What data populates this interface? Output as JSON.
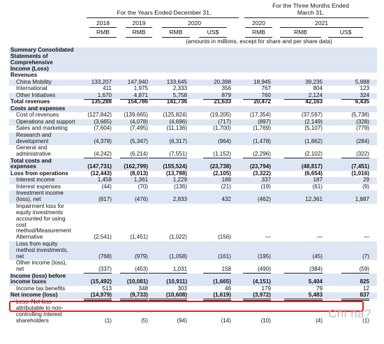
{
  "header": {
    "group_years": "For the Years Ended December 31,",
    "group_quarters_line1": "For the Three Months Ended",
    "group_quarters_line2": "March 31,",
    "years": [
      "2018",
      "2019",
      "2020",
      "2020",
      "2021"
    ],
    "currencies": [
      "RMB",
      "RMB",
      "RMB",
      "US$",
      "RMB",
      "RMB",
      "US$"
    ],
    "amounts_note": "(amounts in millions, except for share and per share data)"
  },
  "rows": [
    {
      "label": [
        "Summary Consolidated",
        "Statements of",
        "Comprehensive",
        "Income (Loss)"
      ],
      "bold": true,
      "values": null
    },
    {
      "label": [
        "Revenues"
      ],
      "bold": true,
      "values": null
    },
    {
      "label": [
        "China Mobility"
      ],
      "indent": true,
      "values": [
        "133,207",
        "147,940",
        "133,645",
        "20,398",
        "18,945",
        "39,235",
        "5,988"
      ]
    },
    {
      "label": [
        "International"
      ],
      "indent": true,
      "values": [
        "411",
        "1,975",
        "2,333",
        "356",
        "767",
        "804",
        "123"
      ]
    },
    {
      "label": [
        "Other Initiatives"
      ],
      "indent": true,
      "values": [
        "1,670",
        "4,871",
        "5,758",
        "879",
        "760",
        "2,124",
        "324"
      ]
    },
    {
      "label": [
        "Total revenues"
      ],
      "bold": true,
      "values": [
        "135,288",
        "154,786",
        "141,736",
        "21,633",
        "20,472",
        "42,163",
        "6,435"
      ]
    },
    {
      "label": [
        "Costs and expenses"
      ],
      "bold": true,
      "values": null
    },
    {
      "label": [
        "Cost of revenues"
      ],
      "indent": true,
      "values": [
        "(127,842)",
        "(139,665)",
        "(125,824)",
        "(19,205)",
        "(17,354)",
        "(37,597)",
        "(5,738)"
      ]
    },
    {
      "label": [
        "Operations and support"
      ],
      "indent": true,
      "values": [
        "(3,665)",
        "(4,078)",
        "(4,696)",
        "(717)",
        "(897)",
        "(2,149)",
        "(328)"
      ]
    },
    {
      "label": [
        "Sales and marketing"
      ],
      "indent": true,
      "values": [
        "(7,604)",
        "(7,495)",
        "(11,136)",
        "(1,700)",
        "(1,769)",
        "(5,107)",
        "(779)"
      ]
    },
    {
      "label": [
        "Research and",
        "development"
      ],
      "indent": true,
      "values": [
        "(4,378)",
        "(5,347)",
        "(6,317)",
        "(964)",
        "(1,478)",
        "(1,862)",
        "(284)"
      ]
    },
    {
      "label": [
        "General and",
        "administrative"
      ],
      "indent": true,
      "values": [
        "(4,242)",
        "(6,214)",
        "(7,551)",
        "(1,152)",
        "(2,296)",
        "(2,102)",
        "(322)"
      ]
    },
    {
      "label": [
        "Total costs and",
        "expenses"
      ],
      "bold": true,
      "values": [
        "(147,731)",
        "(162,799)",
        "(155,524)",
        "(23,738)",
        "(23,794)",
        "(48,817)",
        "(7,451)"
      ]
    },
    {
      "label": [
        "Loss from operations"
      ],
      "bold": true,
      "values": [
        "(12,443)",
        "(8,013)",
        "(13,788)",
        "(2,105)",
        "(3,322)",
        "(6,654)",
        "(1,016)"
      ]
    },
    {
      "label": [
        "Interest income"
      ],
      "indent": true,
      "values": [
        "1,458",
        "1,361",
        "1,229",
        "188",
        "337",
        "187",
        "29"
      ]
    },
    {
      "label": [
        "Interest expenses"
      ],
      "indent": true,
      "values": [
        "(44)",
        "(70)",
        "(136)",
        "(21)",
        "(19)",
        "(61)",
        "(9)"
      ]
    },
    {
      "label": [
        "Investment income",
        "(loss), net"
      ],
      "indent": true,
      "values": [
        "(817)",
        "(476)",
        "2,833",
        "432",
        "(462)",
        "12,361",
        "1,887"
      ]
    },
    {
      "label": [
        "Impairment loss for",
        "equity investments",
        "accounted for using",
        "cost",
        "method/Measurement",
        "Alternative"
      ],
      "indent": true,
      "values": [
        "(2,541)",
        "(1,451)",
        "(1,022)",
        "(156)",
        "—",
        "—",
        "—"
      ]
    },
    {
      "label": [
        "Loss from equity",
        "method investments,",
        "net"
      ],
      "indent": true,
      "values": [
        "(768)",
        "(979)",
        "(1,058)",
        "(161)",
        "(195)",
        "(45)",
        "(7)"
      ]
    },
    {
      "label": [
        "Other income (loss),",
        "net"
      ],
      "indent": true,
      "values": [
        "(337)",
        "(453)",
        "1,031",
        "158",
        "(490)",
        "(384)",
        "(59)"
      ]
    },
    {
      "label": [
        "Income (loss) before",
        "income taxes"
      ],
      "bold": true,
      "values": [
        "(15,492)",
        "(10,081)",
        "(10,911)",
        "(1,665)",
        "(4,151)",
        "5,404",
        "825"
      ]
    },
    {
      "label": [
        "Income tax benefits"
      ],
      "indent": true,
      "values": [
        "513",
        "348",
        "303",
        "46",
        "179",
        "79",
        "12"
      ]
    },
    {
      "label": [
        "Net income (loss)"
      ],
      "bold": true,
      "values": [
        "(14,979)",
        "(9,733)",
        "(10,608)",
        "(1,619)",
        "(3,972)",
        "5,483",
        "837"
      ]
    },
    {
      "label": [
        "Less: Net loss",
        "attributable to non-",
        "controlling interest",
        "shareholders"
      ],
      "indent": true,
      "values": [
        "(1)",
        "(5)",
        "(94)",
        "(14)",
        "(10)",
        "(4)",
        "(1)"
      ]
    }
  ],
  "watermark": "Chi na?",
  "colors": {
    "shade": "#dde6f2",
    "highlight": "#e02020"
  }
}
